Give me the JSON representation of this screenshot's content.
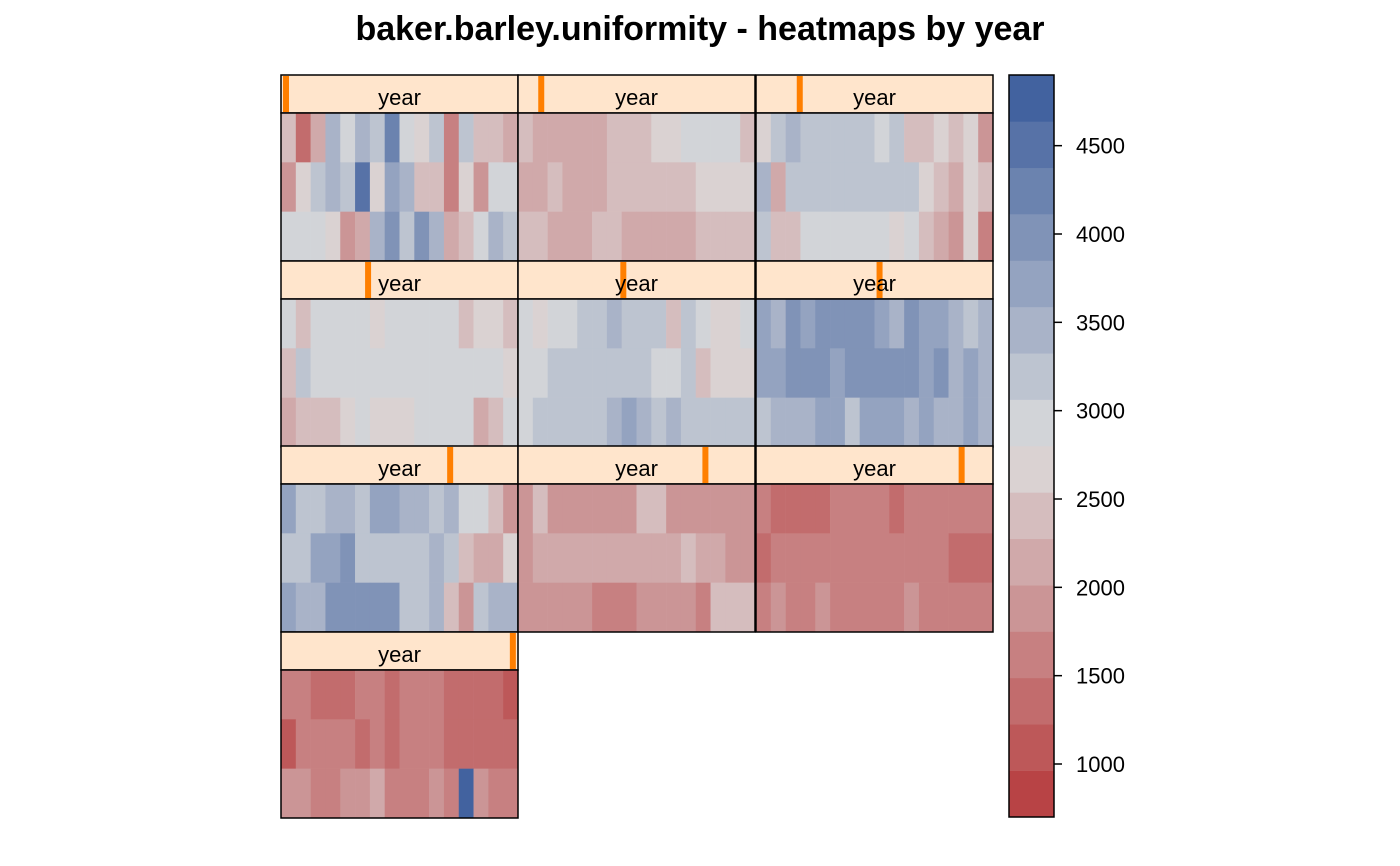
{
  "chart_data": {
    "type": "heatmap",
    "title": "baker.barley.uniformity - heatmaps by year",
    "strip_label": "year",
    "layout": "3 columns x 4 rows (10 panels)",
    "color_scale": {
      "low": "#b6393b",
      "mid": "#dcdcdc",
      "high": "#385a9b",
      "range": [
        700,
        4900
      ],
      "ticks": [
        1000,
        1500,
        2000,
        2500,
        3000,
        3500,
        4000,
        4500
      ]
    },
    "panels": [
      {
        "strip_marker": 0.0,
        "values": [
          [
            2500,
            1300,
            2200,
            3500,
            3000,
            3500,
            3300,
            4200,
            3000,
            2700,
            3200,
            1600,
            3300,
            2500,
            2500,
            2200
          ],
          [
            2000,
            2700,
            3300,
            3500,
            3300,
            4600,
            2600,
            3800,
            3400,
            2500,
            2500,
            1600,
            2700,
            2000,
            2900,
            2900
          ],
          [
            2900,
            2900,
            2900,
            2600,
            1800,
            2200,
            3400,
            4000,
            3200,
            3900,
            3400,
            2200,
            2500,
            2900,
            3400,
            3200
          ]
        ]
      },
      {
        "strip_marker": 0.08,
        "values": [
          [
            2500,
            2200,
            2200,
            2200,
            2200,
            2200,
            2500,
            2500,
            2500,
            2700,
            2700,
            2900,
            2900,
            2900,
            2900,
            2500
          ],
          [
            2200,
            2200,
            2500,
            2200,
            2200,
            2200,
            2500,
            2500,
            2500,
            2500,
            2500,
            2500,
            2700,
            2700,
            2700,
            2700
          ],
          [
            2500,
            2500,
            2200,
            2200,
            2200,
            2500,
            2500,
            2200,
            2200,
            2200,
            2200,
            2200,
            2500,
            2500,
            2500,
            2500
          ]
        ]
      },
      {
        "strip_marker": 0.17,
        "values": [
          [
            2700,
            3200,
            3500,
            3200,
            3200,
            3200,
            3200,
            3200,
            2900,
            3200,
            2500,
            2500,
            2700,
            2500,
            2700,
            1800
          ],
          [
            3500,
            2200,
            3200,
            3200,
            3200,
            3200,
            3200,
            3200,
            3200,
            3200,
            3200,
            2700,
            2500,
            2200,
            2700,
            2500
          ],
          [
            3200,
            2500,
            2500,
            2900,
            2900,
            2900,
            2900,
            2900,
            2900,
            2600,
            2900,
            2500,
            2200,
            1800,
            2700,
            1500
          ]
        ]
      },
      {
        "strip_marker": 0.36,
        "values": [
          [
            3000,
            2500,
            2800,
            3000,
            3000,
            3000,
            2600,
            2800,
            2800,
            2800,
            2800,
            2800,
            2500,
            2700,
            2700,
            2500
          ],
          [
            2300,
            3300,
            3000,
            3000,
            3000,
            3000,
            3000,
            2800,
            2800,
            3000,
            3000,
            3000,
            2800,
            2800,
            2800,
            2600
          ],
          [
            2100,
            2300,
            2300,
            2300,
            2600,
            2900,
            2600,
            2600,
            2700,
            2900,
            2900,
            2900,
            2900,
            2100,
            2500,
            2900
          ]
        ]
      },
      {
        "strip_marker": 0.44,
        "values": [
          [
            2900,
            2700,
            2900,
            2900,
            3200,
            3200,
            3500,
            3200,
            3200,
            3200,
            2400,
            3300,
            3000,
            2700,
            2700,
            3000
          ],
          [
            3000,
            2800,
            3200,
            3200,
            3200,
            3200,
            3300,
            3300,
            3300,
            3000,
            3000,
            3300,
            2300,
            2700,
            2700,
            2700
          ],
          [
            2900,
            3100,
            3100,
            3200,
            3200,
            3100,
            3400,
            3800,
            3400,
            3100,
            3500,
            3200,
            3200,
            3200,
            3200,
            3200
          ]
        ]
      },
      {
        "strip_marker": 0.52,
        "values": [
          [
            3800,
            3500,
            3900,
            3800,
            4100,
            4100,
            4100,
            4100,
            3800,
            3500,
            4000,
            3700,
            3700,
            3500,
            3200,
            3500
          ],
          [
            3800,
            3600,
            4000,
            4000,
            3900,
            3600,
            3900,
            3900,
            3900,
            3900,
            3900,
            3800,
            4100,
            3500,
            3600,
            3500
          ],
          [
            3300,
            3500,
            3400,
            3400,
            3600,
            3600,
            3300,
            3800,
            3800,
            3700,
            3500,
            3600,
            3400,
            3400,
            3800,
            3500
          ]
        ]
      },
      {
        "strip_marker": 0.72,
        "values": [
          [
            3700,
            3200,
            3200,
            3500,
            3500,
            3200,
            3600,
            3600,
            3400,
            3400,
            3200,
            3400,
            2800,
            2800,
            2400,
            1800
          ],
          [
            3200,
            3200,
            3700,
            3700,
            3900,
            3200,
            3200,
            3200,
            3200,
            3200,
            3500,
            3200,
            2500,
            2200,
            2200,
            2700
          ],
          [
            3700,
            3500,
            3500,
            3900,
            3900,
            3900,
            3900,
            3900,
            3200,
            3200,
            3500,
            2300,
            1800,
            3200,
            3500,
            3500
          ]
        ]
      },
      {
        "strip_marker": 0.8,
        "values": [
          [
            2000,
            2300,
            2000,
            2000,
            2000,
            2000,
            2000,
            2000,
            2400,
            2400,
            2000,
            2000,
            2000,
            2000,
            2000,
            2000
          ],
          [
            2000,
            2100,
            2100,
            2100,
            2100,
            2100,
            2100,
            2100,
            2100,
            2100,
            2100,
            2400,
            2100,
            2100,
            1800,
            1800
          ],
          [
            2000,
            2000,
            2000,
            2000,
            2000,
            1700,
            1700,
            1700,
            2000,
            2000,
            1800,
            2000,
            1700,
            2400,
            2400,
            2400
          ]
        ]
      },
      {
        "strip_marker": 0.88,
        "values": [
          [
            1600,
            1300,
            1300,
            1300,
            1300,
            1600,
            1600,
            1600,
            1600,
            1300,
            1600,
            1600,
            1600,
            1600,
            1600,
            1500
          ],
          [
            1300,
            1500,
            1500,
            1500,
            1500,
            1500,
            1500,
            1500,
            1500,
            1500,
            1500,
            1500,
            1500,
            1300,
            1300,
            1300
          ],
          [
            1500,
            1800,
            1500,
            1500,
            1800,
            1600,
            1600,
            1600,
            1600,
            1600,
            1900,
            1600,
            1600,
            1600,
            1600,
            1600
          ]
        ]
      },
      {
        "strip_marker": 0.995,
        "values": [
          [
            1700,
            1500,
            1300,
            1300,
            1300,
            1600,
            1600,
            1400,
            1700,
            1500,
            1500,
            1300,
            1300,
            1300,
            1300,
            1000
          ],
          [
            1200,
            1700,
            1500,
            1500,
            1500,
            1300,
            1700,
            1300,
            1500,
            1500,
            1500,
            1300,
            1300,
            1300,
            1300,
            1300
          ],
          [
            1800,
            1800,
            1600,
            1600,
            2000,
            1800,
            2100,
            1600,
            1600,
            1600,
            1800,
            1600,
            4900,
            1800,
            1600,
            1600
          ]
        ]
      }
    ]
  }
}
